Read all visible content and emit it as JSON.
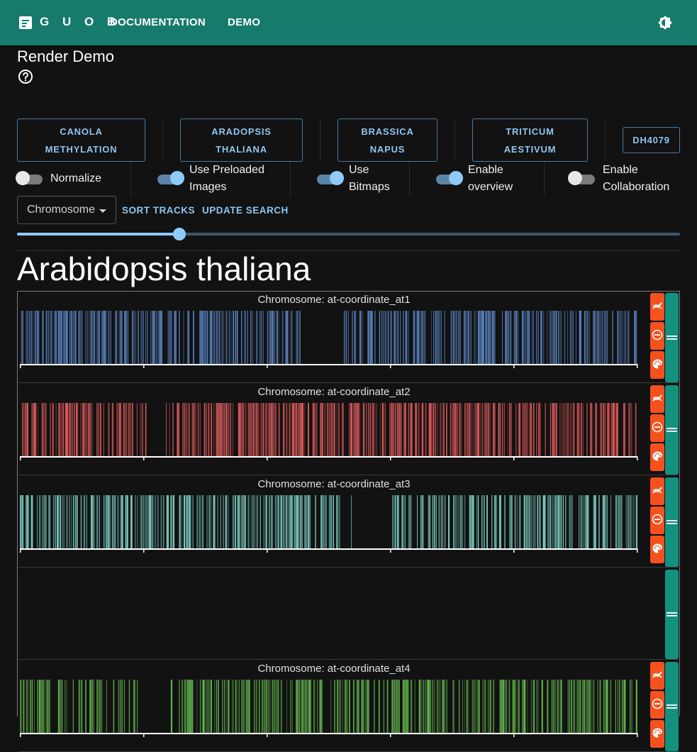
{
  "appbar": {
    "logo": "G U O B",
    "nav": [
      "DOCUMENTATION",
      "DEMO"
    ],
    "icons": {
      "logo": "document-icon",
      "theme": "brightness-icon"
    },
    "background": "#167a6c"
  },
  "page": {
    "title": "Render Demo"
  },
  "datasets": [
    {
      "line1": "CANOLA",
      "line2": "METHYLATION"
    },
    {
      "line1": "ARADOPSIS",
      "line2": "THALIANA"
    },
    {
      "line1": "BRASSICA",
      "line2": "NAPUS"
    },
    {
      "line1": "TRITICUM",
      "line2": "AESTIVUM"
    },
    {
      "line1": "DH4079",
      "line2": ""
    }
  ],
  "switches": [
    {
      "line1": "Normalize",
      "line2": "",
      "on": false
    },
    {
      "line1": "Use Preloaded",
      "line2": "Images",
      "on": true
    },
    {
      "line1": "Use",
      "line2": "Bitmaps",
      "on": true
    },
    {
      "line1": "Enable",
      "line2": "overview",
      "on": true
    },
    {
      "line1": "Enable",
      "line2": "Collaboration",
      "on": false
    }
  ],
  "controls": {
    "chromosome_select": "Chromosome",
    "sort_tracks": "SORT TRACKS",
    "update_search": "UPDATE SEARCH",
    "slider_value": 0.245
  },
  "species": "Arabidopsis thaliana",
  "tracks": [
    {
      "title": "Chromosome: at-coordinate_at1",
      "color": "#5b86c4",
      "seed": 11,
      "gaps": [
        [
          0.46,
          0.525
        ]
      ],
      "controls": true
    },
    {
      "title": "Chromosome: at-coordinate_at2",
      "color": "#e05c5c",
      "seed": 23,
      "gaps": [
        [
          0.2,
          0.24
        ]
      ],
      "controls": true
    },
    {
      "title": "Chromosome: at-coordinate_at3",
      "color": "#7fd3c8",
      "seed": 37,
      "gaps": [
        [
          0.52,
          0.6
        ]
      ],
      "controls": true
    },
    {
      "title": "",
      "color": "#000000",
      "seed": 0,
      "gaps": [],
      "controls": false
    },
    {
      "title": "Chromosome: at-coordinate_at4",
      "color": "#63b54f",
      "seed": 51,
      "gaps": [
        [
          0.17,
          0.26
        ]
      ],
      "controls": true
    }
  ],
  "track_icons": [
    "chart-line-icon",
    "remove-circle-icon",
    "palette-icon",
    "drag-handle-icon"
  ]
}
